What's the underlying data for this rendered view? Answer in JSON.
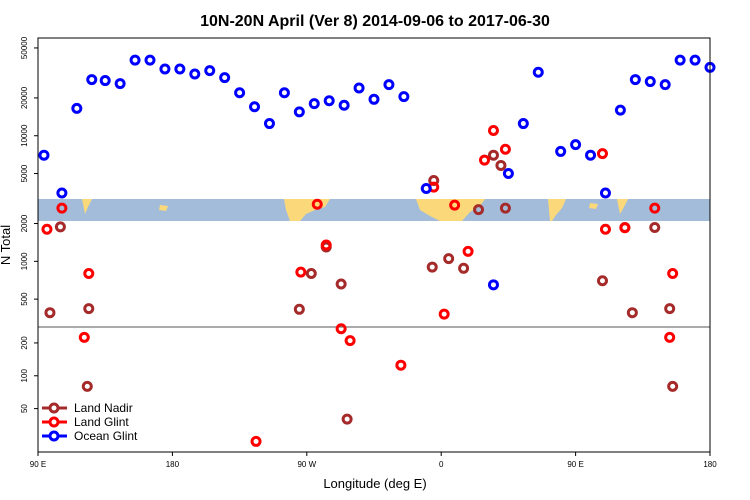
{
  "chart_data": {
    "type": "scatter",
    "title": "10N-20N April (Ver 8)   2014-09-06 to 2017-06-30",
    "xlabel": "Longitude (deg E)",
    "ylabel": "N Total",
    "x_ticks": [
      {
        "value": 90,
        "label": "90 E"
      },
      {
        "value": 180,
        "label": "180"
      },
      {
        "value": 270,
        "label": "90 W"
      },
      {
        "value": 360,
        "label": "0"
      },
      {
        "value": 450,
        "label": "90 E"
      },
      {
        "value": 540,
        "label": "180"
      }
    ],
    "xlim": [
      90,
      540
    ],
    "y_scale": "log",
    "y_ticks_upper": [
      {
        "value": 500,
        "label": "500"
      },
      {
        "value": 1000,
        "label": "1000"
      },
      {
        "value": 2000,
        "label": "2000"
      },
      {
        "value": 5000,
        "label": "5000"
      },
      {
        "value": 10000,
        "label": "10000"
      },
      {
        "value": 20000,
        "label": "20000"
      },
      {
        "value": 50000,
        "label": "50000"
      }
    ],
    "y_ticks_lower": [
      {
        "value": 50,
        "label": "50"
      },
      {
        "value": 100,
        "label": "100"
      },
      {
        "value": 200,
        "label": "200"
      }
    ],
    "legend_position": "bottom-left",
    "series": [
      {
        "name": "Land Nadir",
        "color": "#a52a2a",
        "points": [
          [
            98,
            390
          ],
          [
            105,
            1880
          ],
          [
            123,
            80
          ],
          [
            124,
            420
          ],
          [
            265,
            415
          ],
          [
            273,
            800
          ],
          [
            283,
            1300
          ],
          [
            293,
            660
          ],
          [
            297,
            40
          ],
          [
            355,
            4400
          ],
          [
            354,
            900
          ],
          [
            365,
            1050
          ],
          [
            375,
            880
          ],
          [
            385,
            2580
          ],
          [
            395,
            7000
          ],
          [
            400,
            5800
          ],
          [
            403,
            2650
          ],
          [
            468,
            700
          ],
          [
            488,
            390
          ],
          [
            483,
            1860
          ],
          [
            503,
            1860
          ],
          [
            513,
            420
          ],
          [
            515,
            80
          ]
        ]
      },
      {
        "name": "Land Glint",
        "color": "#ff0000",
        "points": [
          [
            96,
            1800
          ],
          [
            106,
            2650
          ],
          [
            121,
            225
          ],
          [
            124,
            800
          ],
          [
            236,
            25
          ],
          [
            266,
            820
          ],
          [
            277,
            2850
          ],
          [
            283,
            1350
          ],
          [
            293,
            270
          ],
          [
            299,
            210
          ],
          [
            333,
            125
          ],
          [
            355,
            3900
          ],
          [
            362,
            380
          ],
          [
            369,
            2800
          ],
          [
            378,
            1200
          ],
          [
            389,
            6400
          ],
          [
            395,
            11000
          ],
          [
            403,
            7800
          ],
          [
            468,
            7200
          ],
          [
            470,
            1800
          ],
          [
            483,
            1850
          ],
          [
            503,
            2650
          ],
          [
            513,
            225
          ],
          [
            515,
            800
          ]
        ]
      },
      {
        "name": "Ocean Glint",
        "color": "#0000ff",
        "points": [
          [
            94,
            7000
          ],
          [
            106,
            3500
          ],
          [
            116,
            16500
          ],
          [
            126,
            28000
          ],
          [
            135,
            27500
          ],
          [
            145,
            26000
          ],
          [
            155,
            40000
          ],
          [
            165,
            40000
          ],
          [
            175,
            34000
          ],
          [
            185,
            34000
          ],
          [
            195,
            31000
          ],
          [
            205,
            33000
          ],
          [
            215,
            29000
          ],
          [
            225,
            22000
          ],
          [
            235,
            17000
          ],
          [
            245,
            12500
          ],
          [
            255,
            22000
          ],
          [
            265,
            15500
          ],
          [
            275,
            18000
          ],
          [
            285,
            19000
          ],
          [
            295,
            17500
          ],
          [
            305,
            24000
          ],
          [
            315,
            19500
          ],
          [
            325,
            25500
          ],
          [
            335,
            20500
          ],
          [
            350,
            3800
          ],
          [
            395,
            650
          ],
          [
            405,
            5000
          ],
          [
            415,
            12500
          ],
          [
            425,
            32000
          ],
          [
            440,
            7500
          ],
          [
            450,
            8500
          ],
          [
            460,
            7000
          ],
          [
            470,
            3500
          ],
          [
            480,
            16000
          ],
          [
            490,
            28000
          ],
          [
            500,
            27000
          ],
          [
            510,
            25500
          ],
          [
            520,
            40000
          ],
          [
            530,
            40000
          ],
          [
            540,
            35000
          ]
        ]
      }
    ]
  }
}
